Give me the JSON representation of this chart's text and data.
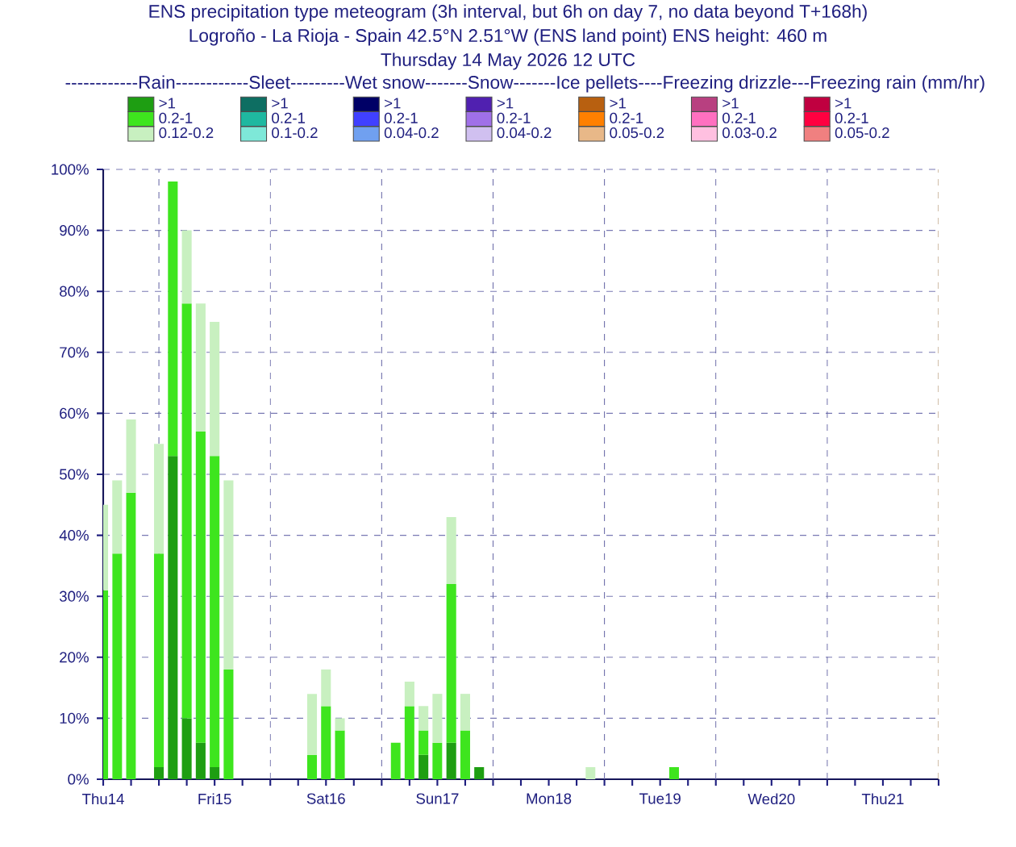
{
  "chart_data": {
    "type": "bar",
    "stacked": true,
    "title": "ENS precipitation type meteogram (3h interval, but 6h on day 7, no data beyond T+168h)",
    "subtitle": "Logroño - La Rioja - Spain 42.5°N 2.51°W (ENS land point) ENS height: 460 m",
    "annotations": [
      "Thursday 14 May 2026 12 UTC"
    ],
    "legend_title": "------------Rain------------Sleet---------Wet snow-------Snow-------Ice pellets----Freezing drizzle---Freezing rain (mm/hr)",
    "legend": "top",
    "x": [
      "2026-05-14T12:00",
      "2026-05-14T15:00",
      "2026-05-14T18:00",
      "2026-05-15T00:00",
      "2026-05-15T03:00",
      "2026-05-15T06:00",
      "2026-05-15T09:00",
      "2026-05-15T12:00",
      "2026-05-15T15:00",
      "2026-05-16T09:00",
      "2026-05-16T12:00",
      "2026-05-16T15:00",
      "2026-05-17T03:00",
      "2026-05-17T06:00",
      "2026-05-17T09:00",
      "2026-05-17T12:00",
      "2026-05-17T15:00",
      "2026-05-17T18:00",
      "2026-05-17T21:00",
      "2026-05-18T21:00",
      "2026-05-19T15:00"
    ],
    "series": [
      {
        "name": ">1",
        "color": "#1e9e12",
        "values": [
          null,
          null,
          null,
          2,
          53,
          10,
          6,
          2,
          null,
          null,
          null,
          null,
          null,
          null,
          4,
          null,
          6,
          null,
          2,
          null,
          null
        ]
      },
      {
        "name": ">1",
        "color": "#0e6e62",
        "values": [
          null,
          null,
          null,
          null,
          null,
          null,
          null,
          null,
          null,
          null,
          null,
          null,
          null,
          null,
          null,
          null,
          null,
          null,
          null,
          null,
          null
        ]
      },
      {
        "name": ">1",
        "color": "#000066",
        "values": [
          null,
          null,
          null,
          null,
          null,
          null,
          null,
          null,
          null,
          null,
          null,
          null,
          null,
          null,
          null,
          null,
          null,
          null,
          null,
          null,
          null
        ]
      },
      {
        "name": ">1",
        "color": "#5020b0",
        "values": [
          null,
          null,
          null,
          null,
          null,
          null,
          null,
          null,
          null,
          null,
          null,
          null,
          null,
          null,
          null,
          null,
          null,
          null,
          null,
          null,
          null
        ]
      },
      {
        "name": ">1",
        "color": "#b86010",
        "values": [
          null,
          null,
          null,
          null,
          null,
          null,
          null,
          null,
          null,
          null,
          null,
          null,
          null,
          null,
          null,
          null,
          null,
          null,
          null,
          null,
          null
        ]
      },
      {
        "name": ">1",
        "color": "#b84080",
        "values": [
          null,
          null,
          null,
          null,
          null,
          null,
          null,
          null,
          null,
          null,
          null,
          null,
          null,
          null,
          null,
          null,
          null,
          null,
          null,
          null,
          null
        ]
      },
      {
        "name": ">1",
        "color": "#c00040",
        "values": [
          null,
          null,
          null,
          null,
          null,
          null,
          null,
          null,
          null,
          null,
          null,
          null,
          null,
          null,
          null,
          null,
          null,
          null,
          null,
          null,
          null
        ]
      },
      {
        "name": "0.2-1",
        "color": "#3ee51e",
        "values": [
          31,
          37,
          47,
          35,
          45,
          68,
          51,
          51,
          18,
          4,
          12,
          8,
          6,
          12,
          4,
          6,
          26,
          8,
          null,
          null,
          2
        ]
      },
      {
        "name": "0.2-1",
        "color": "#1fb8a0",
        "values": [
          null,
          null,
          null,
          null,
          null,
          null,
          null,
          null,
          null,
          null,
          null,
          null,
          null,
          null,
          null,
          null,
          null,
          null,
          null,
          null,
          null
        ]
      },
      {
        "name": "0.2-1",
        "color": "#4040ff",
        "values": [
          null,
          null,
          null,
          null,
          null,
          null,
          null,
          null,
          null,
          null,
          null,
          null,
          null,
          null,
          null,
          null,
          null,
          null,
          null,
          null,
          null
        ]
      },
      {
        "name": "0.2-1",
        "color": "#a070e8",
        "values": [
          null,
          null,
          null,
          null,
          null,
          null,
          null,
          null,
          null,
          null,
          null,
          null,
          null,
          null,
          null,
          null,
          null,
          null,
          null,
          null,
          null
        ]
      },
      {
        "name": "0.2-1",
        "color": "#ff8000",
        "values": [
          null,
          null,
          null,
          null,
          null,
          null,
          null,
          null,
          null,
          null,
          null,
          null,
          null,
          null,
          null,
          null,
          null,
          null,
          null,
          null,
          null
        ]
      },
      {
        "name": "0.2-1",
        "color": "#ff70c0",
        "values": [
          null,
          null,
          null,
          null,
          null,
          null,
          null,
          null,
          null,
          null,
          null,
          null,
          null,
          null,
          null,
          null,
          null,
          null,
          null,
          null,
          null
        ]
      },
      {
        "name": "0.2-1",
        "color": "#ff0040",
        "values": [
          null,
          null,
          null,
          null,
          null,
          null,
          null,
          null,
          null,
          null,
          null,
          null,
          null,
          null,
          null,
          null,
          null,
          null,
          null,
          null,
          null
        ]
      },
      {
        "name": "0.12-0.2",
        "color": "#c8f0c0",
        "values": [
          14,
          12,
          12,
          18,
          null,
          12,
          21,
          22,
          31,
          10,
          6,
          2,
          null,
          4,
          4,
          8,
          11,
          6,
          null,
          2,
          null
        ]
      },
      {
        "name": "0.1-0.2",
        "color": "#7ee8d8",
        "values": [
          null,
          null,
          null,
          null,
          null,
          null,
          null,
          null,
          null,
          null,
          null,
          null,
          null,
          null,
          null,
          null,
          null,
          null,
          null,
          null,
          null
        ]
      },
      {
        "name": "0.04-0.2",
        "color": "#70a0f0",
        "values": [
          null,
          null,
          null,
          null,
          null,
          null,
          null,
          null,
          null,
          null,
          null,
          null,
          null,
          null,
          null,
          null,
          null,
          null,
          null,
          null,
          null
        ]
      },
      {
        "name": "0.04-0.2",
        "color": "#d0c0f0",
        "values": [
          null,
          null,
          null,
          null,
          null,
          null,
          null,
          null,
          null,
          null,
          null,
          null,
          null,
          null,
          null,
          null,
          null,
          null,
          null,
          null,
          null
        ]
      },
      {
        "name": "0.05-0.2",
        "color": "#e8b888",
        "values": [
          null,
          null,
          null,
          null,
          null,
          null,
          null,
          null,
          null,
          null,
          null,
          null,
          null,
          null,
          null,
          null,
          null,
          null,
          null,
          null,
          null
        ]
      },
      {
        "name": "0.03-0.2",
        "color": "#ffc0e0",
        "values": [
          null,
          null,
          null,
          null,
          null,
          null,
          null,
          null,
          null,
          null,
          null,
          null,
          null,
          null,
          null,
          null,
          null,
          null,
          null,
          null,
          null
        ]
      },
      {
        "name": "0.05-0.2",
        "color": "#f08080",
        "values": [
          null,
          null,
          null,
          null,
          null,
          null,
          null,
          null,
          null,
          null,
          null,
          null,
          null,
          null,
          null,
          null,
          null,
          null,
          null,
          null,
          null
        ]
      }
    ],
    "xlim": [
      "2026-05-14T12:00",
      "2026-05-22T00:00"
    ],
    "xticks": [
      {
        "value": "2026-05-14T12:00",
        "label": "Thu14"
      },
      {
        "value": "2026-05-14T18:00",
        "label": null
      },
      {
        "value": "2026-05-15T00:00",
        "label": null
      },
      {
        "value": "2026-05-15T06:00",
        "label": null
      },
      {
        "value": "2026-05-15T12:00",
        "label": "Fri15"
      },
      {
        "value": "2026-05-15T18:00",
        "label": null
      },
      {
        "value": "2026-05-16T00:00",
        "label": null
      },
      {
        "value": "2026-05-16T06:00",
        "label": null
      },
      {
        "value": "2026-05-16T12:00",
        "label": "Sat16"
      },
      {
        "value": "2026-05-16T18:00",
        "label": null
      },
      {
        "value": "2026-05-17T00:00",
        "label": null
      },
      {
        "value": "2026-05-17T06:00",
        "label": null
      },
      {
        "value": "2026-05-17T12:00",
        "label": "Sun17"
      },
      {
        "value": "2026-05-17T18:00",
        "label": null
      },
      {
        "value": "2026-05-18T00:00",
        "label": null
      },
      {
        "value": "2026-05-18T06:00",
        "label": null
      },
      {
        "value": "2026-05-18T12:00",
        "label": "Mon18"
      },
      {
        "value": "2026-05-18T18:00",
        "label": null
      },
      {
        "value": "2026-05-19T00:00",
        "label": null
      },
      {
        "value": "2026-05-19T06:00",
        "label": null
      },
      {
        "value": "2026-05-19T12:00",
        "label": "Tue19"
      },
      {
        "value": "2026-05-19T18:00",
        "label": null
      },
      {
        "value": "2026-05-20T00:00",
        "label": null
      },
      {
        "value": "2026-05-20T06:00",
        "label": null
      },
      {
        "value": "2026-05-20T12:00",
        "label": "Wed20"
      },
      {
        "value": "2026-05-20T18:00",
        "label": null
      },
      {
        "value": "2026-05-21T00:00",
        "label": null
      },
      {
        "value": "2026-05-21T06:00",
        "label": null
      },
      {
        "value": "2026-05-21T12:00",
        "label": "Thu21"
      },
      {
        "value": "2026-05-21T18:00",
        "label": null
      },
      {
        "value": "2026-05-22T00:00",
        "label": null
      }
    ],
    "ylim": [
      0,
      100
    ],
    "yticks": [
      {
        "value": 0,
        "label": "0%"
      },
      {
        "value": 10,
        "label": "10%"
      },
      {
        "value": 20,
        "label": "20%"
      },
      {
        "value": 30,
        "label": "30%"
      },
      {
        "value": 40,
        "label": "40%"
      },
      {
        "value": 50,
        "label": "50%"
      },
      {
        "value": 60,
        "label": "60%"
      },
      {
        "value": 70,
        "label": "70%"
      },
      {
        "value": 80,
        "label": "80%"
      },
      {
        "value": 90,
        "label": "90%"
      },
      {
        "value": 100,
        "label": "100%"
      }
    ],
    "grid": "y",
    "ref_lines": [
      {
        "axis": "x",
        "value": "2026-05-15T00:00",
        "line_style": "dashed",
        "color": "#6a6aa8"
      },
      {
        "axis": "x",
        "value": "2026-05-16T00:00",
        "line_style": "dashed",
        "color": "#6a6aa8"
      },
      {
        "axis": "x",
        "value": "2026-05-17T00:00",
        "line_style": "dashed",
        "color": "#6a6aa8"
      },
      {
        "axis": "x",
        "value": "2026-05-18T00:00",
        "line_style": "dashed",
        "color": "#6a6aa8"
      },
      {
        "axis": "x",
        "value": "2026-05-19T00:00",
        "line_style": "dashed",
        "color": "#6a6aa8"
      },
      {
        "axis": "x",
        "value": "2026-05-20T00:00",
        "line_style": "dashed",
        "color": "#6a6aa8"
      },
      {
        "axis": "x",
        "value": "2026-05-21T00:00",
        "line_style": "dashed",
        "color": "#6a6aa8"
      }
    ]
  }
}
